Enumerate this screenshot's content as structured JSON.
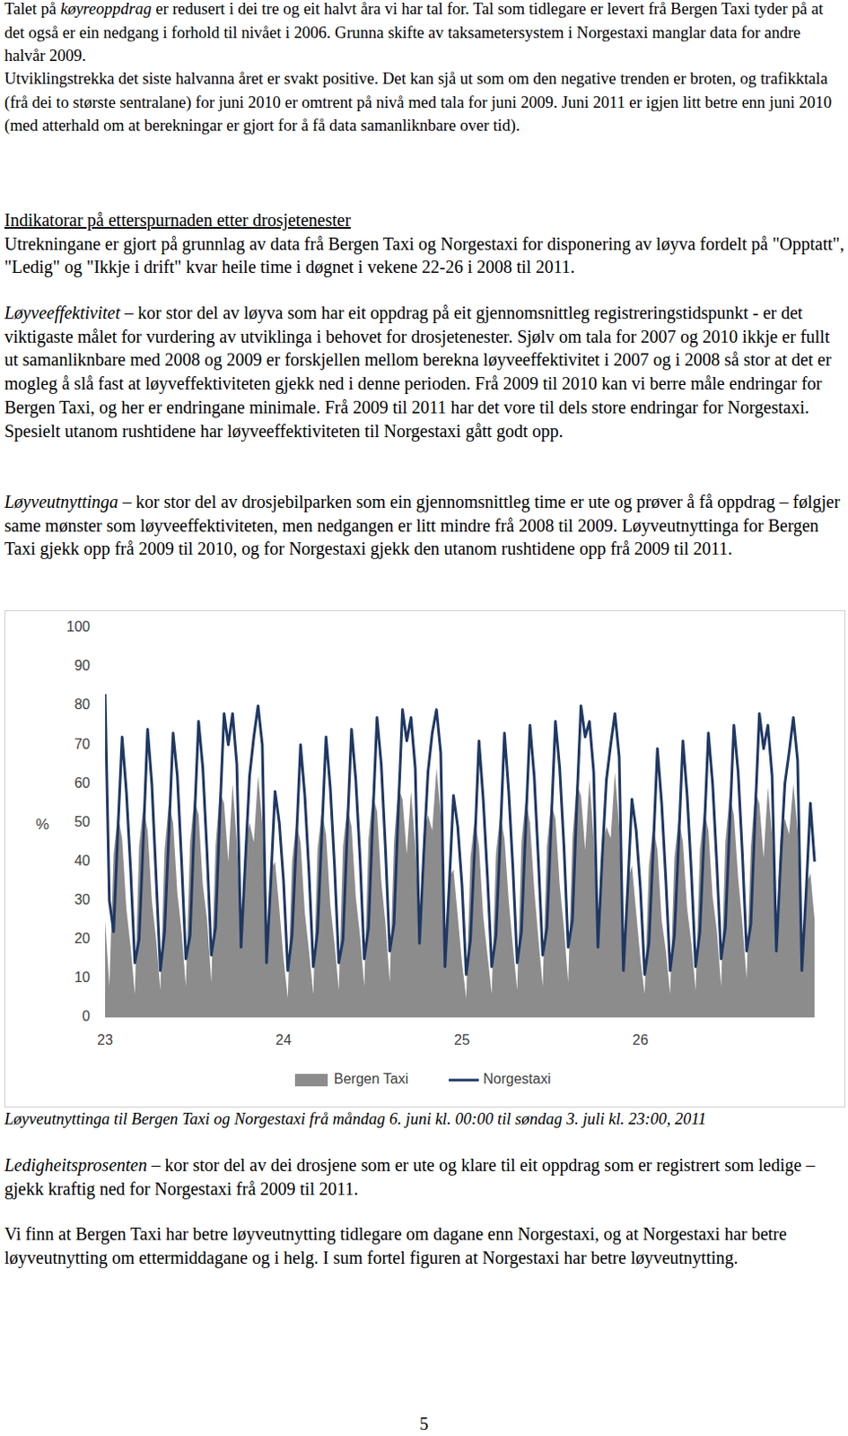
{
  "document": {
    "paragraphs": [
      {
        "text_before": "Talet på ",
        "emphasis": "køyreoppdrag",
        "text": " er redusert i dei tre og eit halvt åra vi har tal for. Tal som tidlegare er levert frå Bergen Taxi tyder på at det også er ein nedgang i forhold til nivået i 2006. Grunna skifte av taksametersystem i Norgestaxi manglar data for andre halvår 2009."
      },
      {
        "text": "Utviklingstrekka det siste halvanna året er svakt positive. Det kan sjå ut som om den negative trenden er broten, og trafikktala (frå dei to største sentralane) for juni 2010 er omtrent på nivå med tala for juni 2009. Juni 2011 er igjen litt betre enn juni 2010 (med atterhald om at berekningar er gjort for å få data samanliknbare over tid)."
      },
      {
        "heading": "Indikatorar på etterspurnaden etter drosjetenester",
        "text": "Utrekningane er gjort på grunnlag av data frå Bergen Taxi og Norgestaxi for disponering av løyva fordelt på \"Opptatt\", \"Ledig\" og \"Ikkje i drift\" kvar heile time i døgnet i vekene 22-26 i 2008 til 2011."
      },
      {
        "emphasis": "Løyveeffektivitet",
        "text": " – kor stor del av løyva som har eit oppdrag på eit gjennomsnittleg registreringstidspunkt - er det viktigaste målet for vurdering av utviklinga i behovet for drosjetenester. Sjølv om tala for 2007 og 2010 ikkje er fullt ut samanliknbare med 2008 og 2009 er forskjellen mellom berekna løyveeffektivitet i 2007 og i 2008 så stor at det er mogleg å slå fast at løyveffektiviteten gjekk ned i denne perioden. Frå 2009 til 2010 kan vi berre måle endringar for Bergen Taxi, og her er endringane minimale. Frå 2009 til 2011 har det vore til dels store endringar for Norgestaxi. Spesielt utanom rushtidene har løyveeffektiviteten til Norgestaxi gått godt opp."
      },
      {
        "emphasis": "Løyveutnyttinga",
        "text": " – kor stor del av drosjebilparken som ein gjennomsnittleg time er ute og prøver å få oppdrag – følgjer same mønster som løyveeffektiviteten, men nedgangen er litt mindre frå 2008 til 2009. Løyveutnyttinga for Bergen Taxi gjekk opp frå 2009 til 2010, og for Norgestaxi gjekk den utanom rushtidene opp frå 2009 til 2011."
      },
      {
        "emphasis": "Ledigheitsprosenten",
        "text": " – kor stor del av dei drosjene som er ute og klare til eit oppdrag som er registrert som ledige – gjekk kraftig ned for Norgestaxi frå 2009 til 2011."
      },
      {
        "text": "Vi finn at Bergen Taxi har betre løyveutnytting tidlegare om dagane enn Norgestaxi, og at Norgestaxi har betre løyveutnytting om ettermiddagane og i helg. I sum fortel figuren at Norgestaxi har betre løyveutnytting."
      }
    ],
    "caption": "Løyveutnyttinga til Bergen Taxi og Norgestaxi frå måndag 6. juni kl. 00:00 til søndag 3. juli kl. 23:00, 2011",
    "page_number": "5"
  },
  "chart_data": {
    "type": "line",
    "y_label": "%",
    "categories": [
      "23",
      null,
      null,
      null,
      null,
      null,
      null,
      null,
      null,
      null,
      null,
      null,
      null,
      null,
      null,
      null,
      null,
      null,
      null,
      null,
      null,
      null,
      null,
      null,
      null,
      null,
      null,
      null,
      null,
      null,
      null,
      null,
      null,
      null,
      null,
      null,
      null,
      null,
      null,
      null,
      null,
      null,
      "24",
      null,
      null,
      null,
      null,
      null,
      null,
      null,
      null,
      null,
      null,
      null,
      null,
      null,
      null,
      null,
      null,
      null,
      null,
      null,
      null,
      null,
      null,
      null,
      null,
      null,
      null,
      null,
      null,
      null,
      null,
      null,
      null,
      null,
      null,
      null,
      null,
      null,
      null,
      null,
      null,
      null,
      "25",
      null,
      null,
      null,
      null,
      null,
      null,
      null,
      null,
      null,
      null,
      null,
      null,
      null,
      null,
      null,
      null,
      null,
      null,
      null,
      null,
      null,
      null,
      null,
      null,
      null,
      null,
      null,
      null,
      null,
      null,
      null,
      null,
      null,
      null,
      null,
      null,
      null,
      null,
      null,
      null,
      null,
      "26",
      null,
      null,
      null,
      null,
      null,
      null,
      null,
      null,
      null,
      null,
      null,
      null,
      null,
      null,
      null,
      null,
      null,
      null,
      null,
      null,
      null,
      null,
      null,
      null,
      null,
      null,
      null,
      null,
      null,
      null,
      null,
      null,
      null,
      null,
      null,
      null,
      null,
      null,
      null,
      null,
      null
    ],
    "series": [
      {
        "name": "Bergen Taxi",
        "type": "area",
        "color": "#8c8c8c",
        "values": [
          25,
          8,
          42,
          52,
          46,
          28,
          18,
          6,
          44,
          54,
          48,
          30,
          20,
          7,
          43,
          55,
          50,
          32,
          22,
          8,
          45,
          56,
          52,
          34,
          25,
          9,
          44,
          58,
          55,
          40,
          60,
          45,
          20,
          45,
          50,
          45,
          62,
          50,
          15,
          38,
          40,
          28,
          15,
          5,
          40,
          50,
          45,
          27,
          17,
          6,
          43,
          53,
          47,
          29,
          19,
          7,
          44,
          54,
          49,
          31,
          21,
          8,
          46,
          57,
          53,
          35,
          24,
          9,
          45,
          59,
          56,
          42,
          58,
          44,
          22,
          47,
          52,
          48,
          64,
          52,
          16,
          36,
          38,
          26,
          14,
          5,
          41,
          51,
          44,
          26,
          16,
          6,
          42,
          52,
          46,
          30,
          18,
          7,
          45,
          56,
          50,
          33,
          20,
          8,
          44,
          55,
          51,
          34,
          23,
          9,
          46,
          60,
          57,
          43,
          61,
          46,
          21,
          44,
          49,
          46,
          63,
          49,
          14,
          35,
          39,
          27,
          15,
          6,
          39,
          49,
          43,
          25,
          17,
          6,
          41,
          51,
          45,
          28,
          19,
          7,
          43,
          53,
          48,
          31,
          22,
          8,
          45,
          57,
          52,
          36,
          24,
          10,
          44,
          58,
          55,
          41,
          59,
          47,
          20,
          46,
          51,
          47,
          60,
          48,
          13,
          34,
          37,
          25
        ]
      },
      {
        "name": "Norgestaxi",
        "type": "line",
        "color": "#1f3864",
        "values": [
          83,
          30,
          22,
          48,
          72,
          58,
          38,
          14,
          20,
          46,
          74,
          60,
          36,
          12,
          22,
          47,
          73,
          62,
          40,
          15,
          21,
          50,
          76,
          64,
          42,
          16,
          23,
          52,
          78,
          70,
          78,
          65,
          18,
          40,
          62,
          72,
          80,
          70,
          14,
          35,
          58,
          50,
          35,
          12,
          21,
          45,
          70,
          57,
          37,
          13,
          22,
          47,
          72,
          59,
          39,
          14,
          20,
          48,
          74,
          61,
          41,
          15,
          23,
          51,
          77,
          65,
          43,
          17,
          24,
          53,
          79,
          71,
          77,
          64,
          19,
          42,
          63,
          73,
          79,
          68,
          13,
          34,
          57,
          49,
          34,
          11,
          20,
          44,
          71,
          56,
          36,
          13,
          21,
          46,
          73,
          58,
          38,
          14,
          22,
          49,
          75,
          62,
          40,
          16,
          23,
          50,
          76,
          64,
          44,
          18,
          25,
          54,
          80,
          72,
          76,
          63,
          18,
          41,
          61,
          70,
          78,
          67,
          12,
          33,
          56,
          48,
          33,
          11,
          19,
          43,
          69,
          55,
          35,
          12,
          21,
          45,
          71,
          57,
          37,
          13,
          22,
          47,
          73,
          60,
          39,
          15,
          23,
          49,
          75,
          63,
          42,
          17,
          24,
          52,
          78,
          69,
          75,
          62,
          17,
          40,
          60,
          68,
          77,
          66,
          12,
          32,
          55,
          40
        ]
      }
    ],
    "ylim": [
      0,
      100
    ],
    "yticks": [
      0,
      10,
      20,
      30,
      40,
      50,
      60,
      70,
      80,
      90,
      100
    ],
    "grid": false,
    "legend": "bottom"
  }
}
